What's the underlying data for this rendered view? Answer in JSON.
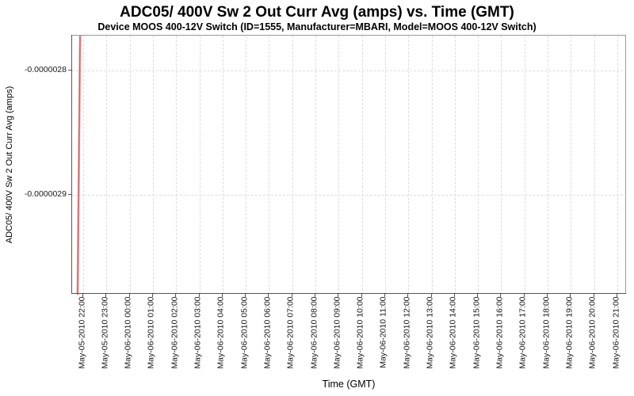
{
  "chart_data": {
    "type": "line",
    "title": "ADC05/ 400V Sw 2 Out Curr Avg (amps) vs. Time (GMT)",
    "subtitle": "Device MOOS 400-12V Switch (ID=1555, Manufacturer=MBARI, Model=MOOS 400-12V Switch)",
    "xlabel": "Time (GMT)",
    "ylabel": "ADC05/ 400V Sw 2 Out Curr Avg (amps)",
    "x_tick_labels": [
      "May-05-2010 22:00",
      "May-05-2010 23:00",
      "May-06-2010 00:00",
      "May-06-2010 01:00",
      "May-06-2010 02:00",
      "May-06-2010 03:00",
      "May-06-2010 04:00",
      "May-06-2010 05:00",
      "May-06-2010 06:00",
      "May-06-2010 07:00",
      "May-06-2010 08:00",
      "May-06-2010 09:00",
      "May-06-2010 10:00",
      "May-06-2010 11:00",
      "May-06-2010 12:00",
      "May-06-2010 13:00",
      "May-06-2010 14:00",
      "May-06-2010 15:00",
      "May-06-2010 16:00",
      "May-06-2010 17:00",
      "May-06-2010 18:00",
      "May-06-2010 19:00",
      "May-06-2010 20:00",
      "May-06-2010 21:00"
    ],
    "y_tick_labels": [
      "-0.0000028",
      "-0.0000029"
    ],
    "ylim": [
      -2.98e-06,
      -2.77e-06
    ],
    "xlim": [
      "May-05-2010 21:30",
      "May-06-2010 21:27"
    ],
    "grid": {
      "style": "dashed",
      "color": "#dcdcdc",
      "vertical": true,
      "horizontal": true
    },
    "legend": "none",
    "series": [
      {
        "name": "ADC05/ 400V Sw 2 Out Curr Avg (amps)",
        "color": "#c94f4f",
        "points": [
          {
            "x": "May-05-2010 21:49",
            "y": -2.98e-06
          },
          {
            "x": "May-05-2010 21:55",
            "y": -2.77e-06
          }
        ]
      }
    ]
  }
}
